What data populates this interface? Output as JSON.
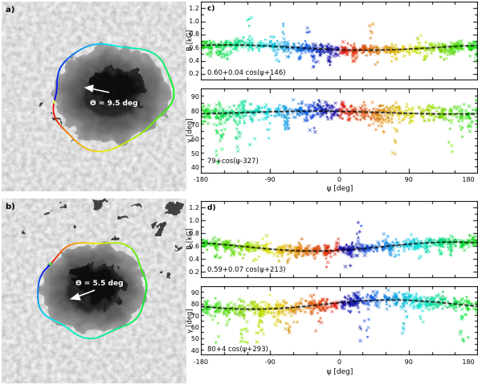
{
  "figure": {
    "background": "#ffffff",
    "description": "Sunspot continuum images with colored boundary contours (left) and azimuthal scatter plots of field strength and inclination (right)"
  },
  "images": [
    {
      "id": "a",
      "label": "a)",
      "annotation": "Θ = 9.5 deg",
      "arrow_direction": "left",
      "contour_hue_stops": [
        [
          0,
          180
        ],
        [
          0.13,
          150
        ],
        [
          0.25,
          122
        ],
        [
          0.4,
          85
        ],
        [
          0.52,
          58
        ],
        [
          0.63,
          28
        ],
        [
          0.665,
          8
        ],
        [
          0.725,
          0
        ],
        [
          0.735,
          242
        ],
        [
          0.86,
          225
        ],
        [
          0.95,
          196
        ],
        [
          1,
          180
        ]
      ]
    },
    {
      "id": "b",
      "label": "b)",
      "annotation": "Θ = 5.5 deg",
      "arrow_direction": "down-left",
      "contour_hue_stops": [
        [
          0,
          58
        ],
        [
          0.12,
          95
        ],
        [
          0.25,
          122
        ],
        [
          0.42,
          148
        ],
        [
          0.55,
          168
        ],
        [
          0.66,
          188
        ],
        [
          0.74,
          210
        ],
        [
          0.82,
          238
        ],
        [
          0.845,
          240
        ],
        [
          0.855,
          0
        ],
        [
          0.92,
          25
        ],
        [
          1,
          58
        ]
      ]
    }
  ],
  "chart_data": [
    {
      "type": "scatter",
      "panel_label": "c)",
      "xlabel": "ψ [deg]",
      "xlim": [
        -180,
        180
      ],
      "xticks": [
        -180,
        -90,
        0,
        90,
        180
      ],
      "xtick_labels": [
        "-180",
        "-90",
        "0",
        "90",
        "180"
      ],
      "xtick_minor_step": 30,
      "legend": "none",
      "grid": false,
      "color_scheme": "azimuth-rainbow",
      "color_direction": 1,
      "marker": "x",
      "fit_line_color": "#000000",
      "subplots": [
        {
          "ylabel": "B [kG]",
          "ylim": [
            0.1,
            1.3
          ],
          "yticks": [
            0.2,
            0.4,
            0.6,
            0.8,
            1.0,
            1.2
          ],
          "ytick_labels": [
            "0.2",
            "0.4",
            "0.6",
            "0.8",
            "1.0",
            "1.2"
          ],
          "ytick_minor_step": 0.1,
          "fit_annotation": "0.60+0.04 cos(ψ+146)",
          "fit": {
            "offset": 0.6,
            "amplitude": 0.04,
            "phase_deg": 146
          },
          "scatter": {
            "seed": 11,
            "clusters": 46,
            "cluster_sigma": 2.6,
            "sigma": 0.04,
            "tail_down": 0.3,
            "tail_up": 0.55,
            "tail_down_frac": 0.42,
            "tail_up_frac": 0.2
          }
        },
        {
          "ylabel": "γ [deg]",
          "ylim": [
            36,
            96
          ],
          "yticks": [
            40,
            50,
            60,
            70,
            80,
            90
          ],
          "ytick_labels": [
            "40",
            "50",
            "60",
            "70",
            "80",
            "90"
          ],
          "ytick_minor_step": 5,
          "fit_annotation": "79+cos(ψ-327)",
          "fit": {
            "offset": 79,
            "amplitude": 1,
            "phase_deg": -327
          },
          "scatter": {
            "seed": 21,
            "clusters": 46,
            "cluster_sigma": 2.6,
            "sigma": 3.2,
            "tail_down": 36,
            "tail_up": 10,
            "tail_down_frac": 0.48,
            "tail_up_frac": 0.18
          }
        }
      ]
    },
    {
      "type": "scatter",
      "panel_label": "d)",
      "xlabel": "ψ [deg]",
      "xlim": [
        -180,
        180
      ],
      "xticks": [
        -180,
        -90,
        0,
        90,
        180
      ],
      "xtick_labels": [
        "-180",
        "-90",
        "0",
        "90",
        "180"
      ],
      "xtick_minor_step": 30,
      "legend": "none",
      "grid": false,
      "color_scheme": "azimuth-rainbow",
      "color_direction": -1,
      "marker": "x",
      "fit_line_color": "#000000",
      "subplots": [
        {
          "ylabel": "B [kG]",
          "ylim": [
            0.1,
            1.3
          ],
          "yticks": [
            0.2,
            0.4,
            0.6,
            0.8,
            1.0,
            1.2
          ],
          "ytick_labels": [
            "0.2",
            "0.4",
            "0.6",
            "0.8",
            "1.0",
            "1.2"
          ],
          "ytick_minor_step": 0.1,
          "fit_annotation": "0.59+0.07 cos(ψ+213)",
          "fit": {
            "offset": 0.59,
            "amplitude": 0.07,
            "phase_deg": 213
          },
          "scatter": {
            "seed": 31,
            "clusters": 46,
            "cluster_sigma": 2.6,
            "sigma": 0.04,
            "tail_down": 0.3,
            "tail_up": 0.55,
            "tail_down_frac": 0.42,
            "tail_up_frac": 0.2
          }
        },
        {
          "ylabel": "γ [deg]",
          "ylim": [
            36,
            96
          ],
          "yticks": [
            40,
            50,
            60,
            70,
            80,
            90
          ],
          "ytick_labels": [
            "40",
            "50",
            "60",
            "70",
            "80",
            "90"
          ],
          "ytick_minor_step": 5,
          "fit_annotation": "80+4 cos(ψ+293)",
          "fit": {
            "offset": 80,
            "amplitude": 4,
            "phase_deg": 293
          },
          "scatter": {
            "seed": 41,
            "clusters": 46,
            "cluster_sigma": 2.6,
            "sigma": 3.2,
            "tail_down": 36,
            "tail_up": 10,
            "tail_down_frac": 0.48,
            "tail_up_frac": 0.18
          }
        }
      ]
    }
  ],
  "pores_b": [
    [
      55,
      18,
      6,
      4
    ],
    [
      78,
      9,
      5,
      3
    ],
    [
      120,
      7,
      8,
      4
    ],
    [
      150,
      22,
      5,
      3
    ],
    [
      197,
      38,
      9,
      5
    ],
    [
      214,
      12,
      11,
      6
    ],
    [
      90,
      33,
      4,
      3
    ],
    [
      140,
      48,
      4,
      2
    ],
    [
      170,
      8,
      5,
      3
    ],
    [
      30,
      40,
      3,
      2
    ],
    [
      205,
      95,
      5,
      3
    ],
    [
      222,
      60,
      4,
      3
    ]
  ],
  "pores_a": [
    [
      70,
      150,
      5,
      3
    ],
    [
      62,
      140,
      3,
      2
    ],
    [
      88,
      170,
      3,
      2
    ],
    [
      52,
      128,
      3,
      2
    ]
  ]
}
